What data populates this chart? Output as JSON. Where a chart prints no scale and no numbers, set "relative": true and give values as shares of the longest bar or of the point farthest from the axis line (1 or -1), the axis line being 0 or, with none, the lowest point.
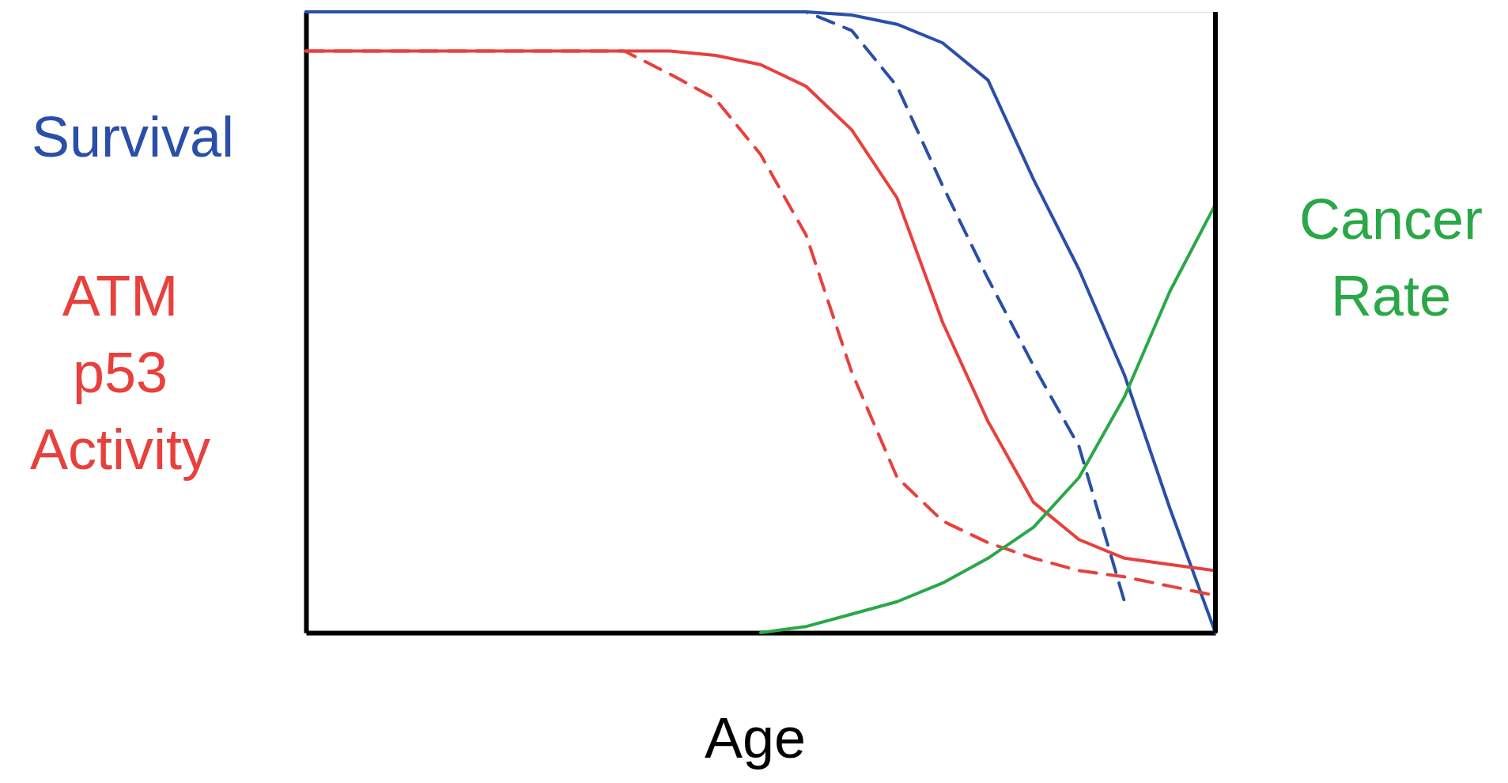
{
  "chart_data": {
    "type": "line",
    "relative": true,
    "xlabel": "Age",
    "ylabel": "Survival",
    "y2label": "Cancer Rate",
    "annotations": [
      "ATM p53 Activity"
    ],
    "categories": [
      null,
      null,
      null,
      null,
      null,
      null,
      null,
      null,
      null,
      null,
      null,
      null,
      null,
      null,
      null,
      null,
      null,
      null,
      null,
      null,
      null
    ],
    "series": [
      {
        "color": "#2a4fa8",
        "line_style": "solid",
        "values": [
          1,
          1,
          1,
          1,
          1,
          1,
          1,
          1,
          1,
          1,
          1,
          1,
          0.995,
          0.98,
          0.95,
          0.89,
          0.73,
          0.585,
          0.415,
          0.2,
          0
        ]
      },
      {
        "color": "#2a4fa8",
        "line_style": "dashed",
        "values": [
          1,
          1,
          1,
          1,
          1,
          1,
          1,
          1,
          1,
          1,
          1,
          1,
          0.97,
          0.88,
          0.72,
          0.57,
          0.43,
          0.3,
          0.05,
          null,
          null
        ]
      },
      {
        "color": "#e8403c",
        "line_style": "solid",
        "values": [
          0.937,
          0.937,
          0.937,
          0.937,
          0.937,
          0.937,
          0.937,
          0.937,
          0.937,
          0.93,
          0.915,
          0.88,
          0.81,
          0.7,
          0.5,
          0.34,
          0.21,
          0.15,
          0.12,
          0.11,
          0.1
        ]
      },
      {
        "color": "#e8403c",
        "line_style": "dashed",
        "values": [
          0.937,
          0.937,
          0.937,
          0.937,
          0.937,
          0.937,
          0.937,
          0.937,
          0.9,
          0.86,
          0.77,
          0.64,
          0.42,
          0.25,
          0.18,
          0.145,
          0.12,
          0.1,
          0.09,
          0.075,
          0.06
        ]
      },
      {
        "color": "#2aa848",
        "line_style": "solid",
        "values": [
          null,
          null,
          null,
          null,
          null,
          null,
          null,
          null,
          null,
          null,
          0,
          0.01,
          0.03,
          0.05,
          0.08,
          0.12,
          0.17,
          0.25,
          0.38,
          0.55,
          0.69
        ]
      }
    ]
  }
}
